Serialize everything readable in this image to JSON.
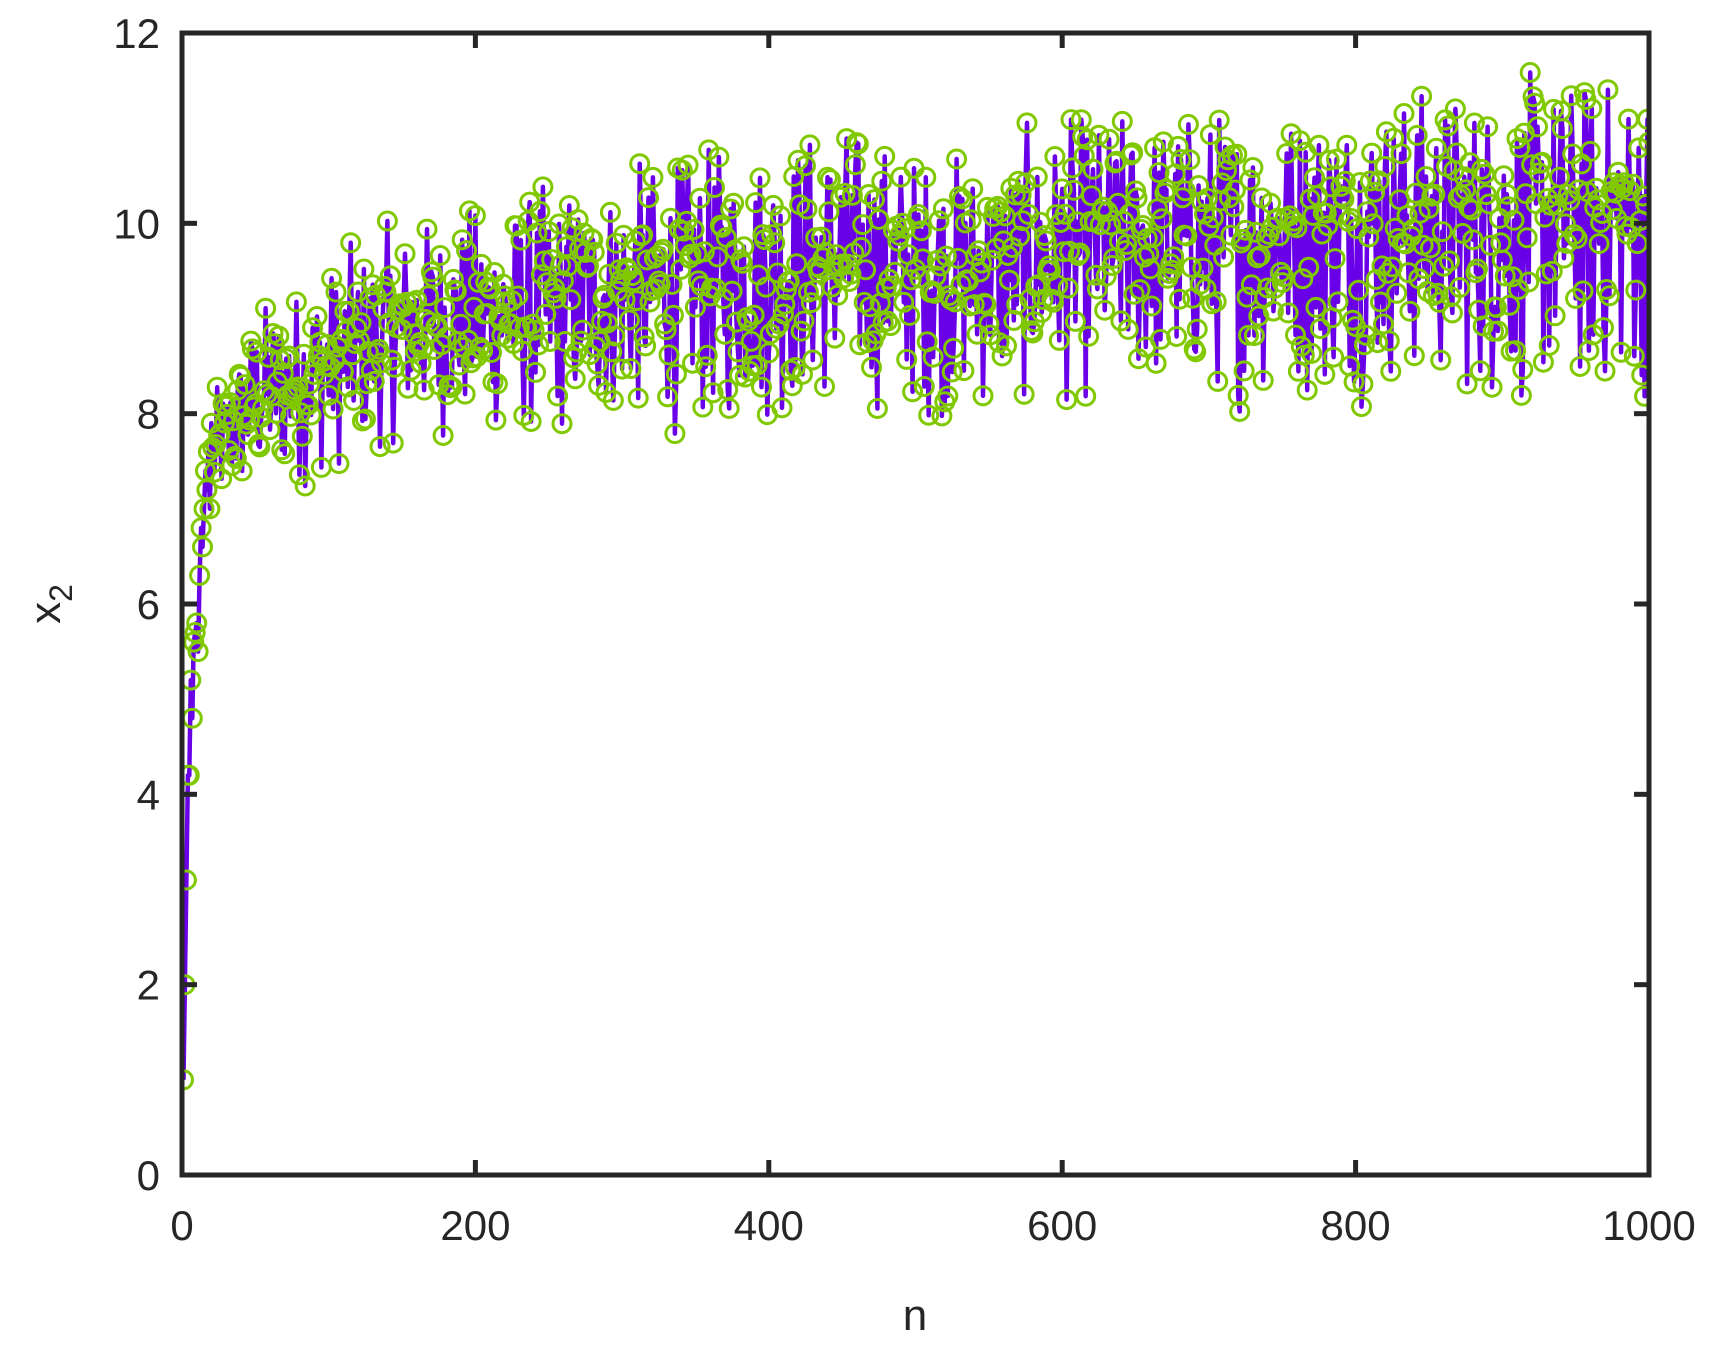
{
  "figure": {
    "background": "#ffffff",
    "axis_color": "#262626",
    "line_color": "#6A00E8",
    "marker_color": "#80C800"
  },
  "chart_data": {
    "type": "line",
    "title": "",
    "xlabel": "n",
    "ylabel": "x",
    "ylabel_subscript": "2",
    "xlim": [
      0,
      1000
    ],
    "ylim": [
      0,
      12
    ],
    "xticks": [
      0,
      200,
      400,
      600,
      800,
      1000
    ],
    "xtick_labels": [
      "0",
      "200",
      "400",
      "600",
      "800",
      "1000"
    ],
    "yticks": [
      0,
      2,
      4,
      6,
      8,
      10,
      12
    ],
    "ytick_labels": [
      "0",
      "2",
      "4",
      "6",
      "8",
      "10",
      "12"
    ],
    "grid": false,
    "legend": null,
    "series": [
      {
        "name": "x_2",
        "style": "solid line with open circle markers",
        "line_color": "#6A00E8",
        "marker": "o",
        "marker_color": "#80C800",
        "n_points": 1000,
        "initial_values": [
          1.0,
          2.0,
          3.1,
          4.2,
          4.2,
          5.2,
          4.8,
          5.6,
          5.7,
          5.8,
          5.5,
          6.3,
          6.8,
          6.6,
          7.0,
          7.4,
          7.2,
          7.6,
          7.0,
          7.9
        ],
        "envelope": {
          "n": [
            20,
            50,
            100,
            150,
            200,
            250,
            300,
            350,
            400,
            450,
            500,
            550,
            600,
            650,
            700,
            750,
            800,
            850,
            900,
            950,
            1000
          ],
          "lower": [
            6.8,
            6.9,
            7.2,
            7.6,
            7.6,
            7.5,
            7.7,
            7.6,
            7.7,
            7.9,
            7.8,
            7.8,
            7.9,
            7.9,
            7.9,
            7.9,
            8.0,
            8.0,
            7.8,
            7.8,
            7.9
          ],
          "upper": [
            8.2,
            9.3,
            9.8,
            10.2,
            10.4,
            10.6,
            10.8,
            10.9,
            11.2,
            11.4,
            11.0,
            11.0,
            11.3,
            11.4,
            11.5,
            11.5,
            11.6,
            11.7,
            11.7,
            11.8,
            11.8
          ],
          "mean": [
            7.5,
            8.2,
            8.5,
            8.9,
            9.0,
            9.1,
            9.3,
            9.4,
            9.5,
            9.6,
            9.5,
            9.5,
            9.7,
            9.8,
            9.8,
            9.9,
            10.0,
            10.0,
            10.0,
            10.1,
            10.1
          ]
        }
      }
    ]
  }
}
